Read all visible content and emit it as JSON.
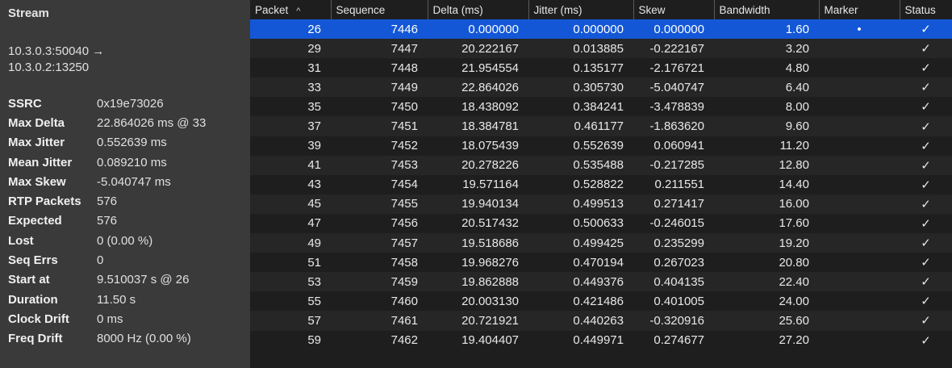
{
  "left": {
    "title": "Stream",
    "address_line1": "10.3.0.3:50040 →",
    "address_line2": "10.3.0.2:13250",
    "stats": [
      {
        "label": "SSRC",
        "value": "0x19e73026"
      },
      {
        "label": "Max Delta",
        "value": "22.864026 ms @ 33"
      },
      {
        "label": "Max Jitter",
        "value": "0.552639 ms"
      },
      {
        "label": "Mean Jitter",
        "value": "0.089210 ms"
      },
      {
        "label": "Max Skew",
        "value": "-5.040747 ms"
      },
      {
        "label": "RTP Packets",
        "value": "576"
      },
      {
        "label": "Expected",
        "value": "576"
      },
      {
        "label": "Lost",
        "value": "0 (0.00 %)"
      },
      {
        "label": "Seq Errs",
        "value": "0"
      },
      {
        "label": "Start at",
        "value": "9.510037 s @ 26"
      },
      {
        "label": "Duration",
        "value": "11.50 s"
      },
      {
        "label": "Clock Drift",
        "value": "0 ms"
      },
      {
        "label": "Freq Drift",
        "value": "8000 Hz (0.00 %)"
      }
    ]
  },
  "table": {
    "sort_icon": "^",
    "columns": [
      "Packet",
      "Sequence",
      "Delta (ms)",
      "Jitter (ms)",
      "Skew",
      "Bandwidth",
      "Marker",
      "Status"
    ],
    "rows": [
      {
        "packet": "26",
        "sequence": "7446",
        "delta": "0.000000",
        "jitter": "0.000000",
        "skew": "0.000000",
        "bandwidth": "1.60",
        "marker": "•",
        "status": "✓"
      },
      {
        "packet": "29",
        "sequence": "7447",
        "delta": "20.222167",
        "jitter": "0.013885",
        "skew": "-0.222167",
        "bandwidth": "3.20",
        "marker": "",
        "status": "✓"
      },
      {
        "packet": "31",
        "sequence": "7448",
        "delta": "21.954554",
        "jitter": "0.135177",
        "skew": "-2.176721",
        "bandwidth": "4.80",
        "marker": "",
        "status": "✓"
      },
      {
        "packet": "33",
        "sequence": "7449",
        "delta": "22.864026",
        "jitter": "0.305730",
        "skew": "-5.040747",
        "bandwidth": "6.40",
        "marker": "",
        "status": "✓"
      },
      {
        "packet": "35",
        "sequence": "7450",
        "delta": "18.438092",
        "jitter": "0.384241",
        "skew": "-3.478839",
        "bandwidth": "8.00",
        "marker": "",
        "status": "✓"
      },
      {
        "packet": "37",
        "sequence": "7451",
        "delta": "18.384781",
        "jitter": "0.461177",
        "skew": "-1.863620",
        "bandwidth": "9.60",
        "marker": "",
        "status": "✓"
      },
      {
        "packet": "39",
        "sequence": "7452",
        "delta": "18.075439",
        "jitter": "0.552639",
        "skew": "0.060941",
        "bandwidth": "11.20",
        "marker": "",
        "status": "✓"
      },
      {
        "packet": "41",
        "sequence": "7453",
        "delta": "20.278226",
        "jitter": "0.535488",
        "skew": "-0.217285",
        "bandwidth": "12.80",
        "marker": "",
        "status": "✓"
      },
      {
        "packet": "43",
        "sequence": "7454",
        "delta": "19.571164",
        "jitter": "0.528822",
        "skew": "0.211551",
        "bandwidth": "14.40",
        "marker": "",
        "status": "✓"
      },
      {
        "packet": "45",
        "sequence": "7455",
        "delta": "19.940134",
        "jitter": "0.499513",
        "skew": "0.271417",
        "bandwidth": "16.00",
        "marker": "",
        "status": "✓"
      },
      {
        "packet": "47",
        "sequence": "7456",
        "delta": "20.517432",
        "jitter": "0.500633",
        "skew": "-0.246015",
        "bandwidth": "17.60",
        "marker": "",
        "status": "✓"
      },
      {
        "packet": "49",
        "sequence": "7457",
        "delta": "19.518686",
        "jitter": "0.499425",
        "skew": "0.235299",
        "bandwidth": "19.20",
        "marker": "",
        "status": "✓"
      },
      {
        "packet": "51",
        "sequence": "7458",
        "delta": "19.968276",
        "jitter": "0.470194",
        "skew": "0.267023",
        "bandwidth": "20.80",
        "marker": "",
        "status": "✓"
      },
      {
        "packet": "53",
        "sequence": "7459",
        "delta": "19.862888",
        "jitter": "0.449376",
        "skew": "0.404135",
        "bandwidth": "22.40",
        "marker": "",
        "status": "✓"
      },
      {
        "packet": "55",
        "sequence": "7460",
        "delta": "20.003130",
        "jitter": "0.421486",
        "skew": "0.401005",
        "bandwidth": "24.00",
        "marker": "",
        "status": "✓"
      },
      {
        "packet": "57",
        "sequence": "7461",
        "delta": "20.721921",
        "jitter": "0.440263",
        "skew": "-0.320916",
        "bandwidth": "25.60",
        "marker": "",
        "status": "✓"
      },
      {
        "packet": "59",
        "sequence": "7462",
        "delta": "19.404407",
        "jitter": "0.449971",
        "skew": "0.274677",
        "bandwidth": "27.20",
        "marker": "",
        "status": "✓"
      }
    ],
    "selected_row": 0,
    "colors": {
      "selected": "#1357d6",
      "background": "#1e1e1e",
      "panel": "#3a3a3a"
    }
  }
}
